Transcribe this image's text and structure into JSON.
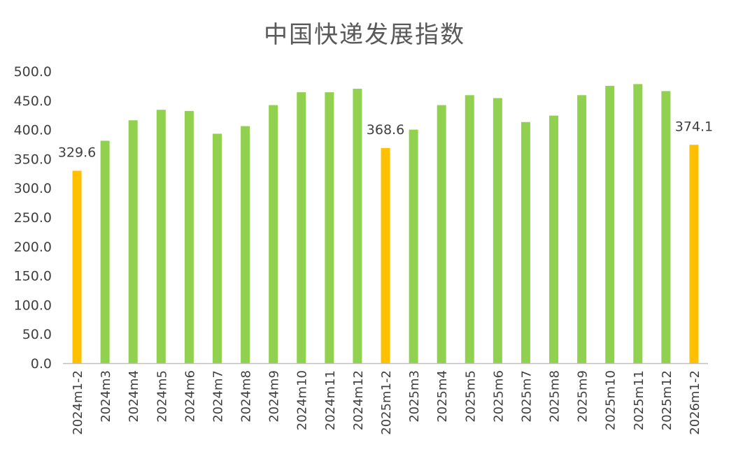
{
  "chart_data": {
    "type": "bar",
    "title": "中国快递发展指数",
    "categories": [
      "2024m1-2",
      "2024m3",
      "2024m4",
      "2024m5",
      "2024m6",
      "2024m7",
      "2024m8",
      "2024m9",
      "2024m10",
      "2024m11",
      "2024m12",
      "2025m1-2",
      "2025m3",
      "2025m4",
      "2025m5",
      "2025m6",
      "2025m7",
      "2025m8",
      "2025m9",
      "2025m10",
      "2025m11",
      "2025m12",
      "2026m1-2"
    ],
    "values": [
      329.6,
      381,
      416,
      434,
      432,
      393,
      406,
      442,
      464,
      464,
      470,
      368.6,
      400,
      442,
      459,
      454,
      413,
      424,
      459,
      475,
      478,
      466,
      374.1
    ],
    "highlight": [
      true,
      false,
      false,
      false,
      false,
      false,
      false,
      false,
      false,
      false,
      false,
      true,
      false,
      false,
      false,
      false,
      false,
      false,
      false,
      false,
      false,
      false,
      true
    ],
    "data_labels": [
      "329.6",
      "",
      "",
      "",
      "",
      "",
      "",
      "",
      "",
      "",
      "",
      "368.6",
      "",
      "",
      "",
      "",
      "",
      "",
      "",
      "",
      "",
      "",
      "374.1"
    ],
    "y_ticks": [
      "0.0",
      "50.0",
      "100.0",
      "150.0",
      "200.0",
      "250.0",
      "300.0",
      "350.0",
      "400.0",
      "450.0",
      "500.0"
    ],
    "ylim": [
      0,
      500
    ],
    "xlabel": "",
    "ylabel": "",
    "grid": false,
    "colors": {
      "normal": "#92D050",
      "highlight": "#FFC000",
      "axis": "#BFBFBF",
      "text": "#404040"
    }
  }
}
